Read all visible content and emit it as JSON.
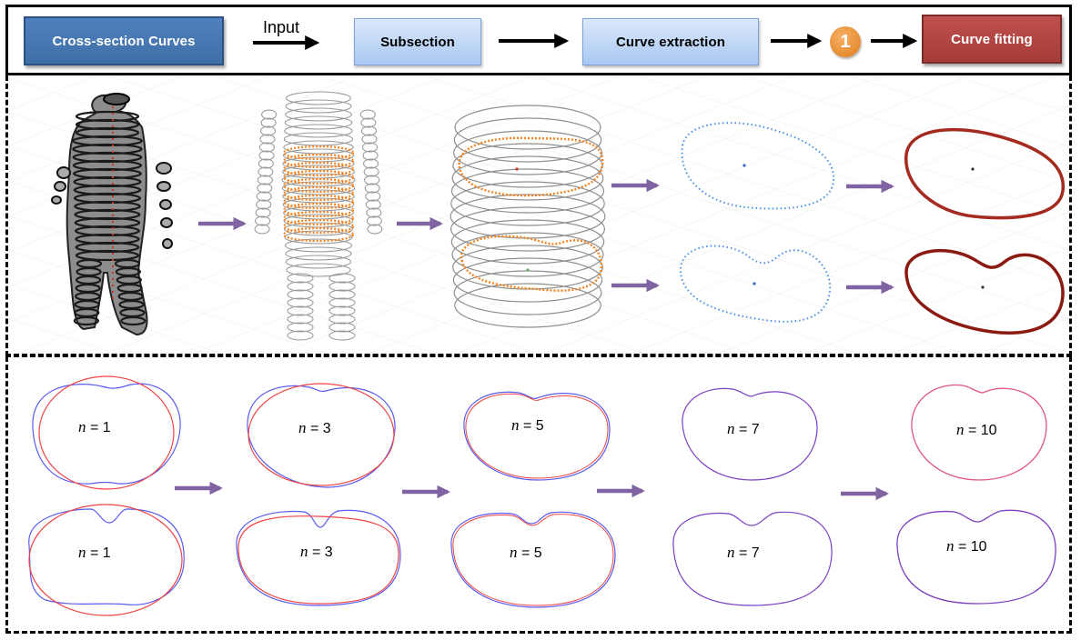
{
  "pipeline": {
    "source_label": "Cross-section Curves",
    "input_label": "Input",
    "step_subsection": "Subsection",
    "step_extraction": "Curve extraction",
    "step_badge": "1",
    "step_fitting": "Curve fitting"
  },
  "colors": {
    "source_box": "#4f81bd",
    "step_box": "#b8d3f5",
    "fitting_box": "#c0504d",
    "badge": "#f0943a",
    "arrow_purple": "#8064a2",
    "subsection_curves": "#f58220",
    "extracted_points": "#4a8fe7",
    "fitted_curve": "#b22222",
    "original_curve": "#5b5bf0",
    "fitted_overlay": "#ee4444"
  },
  "fitting_orders": {
    "top_row": [
      {
        "prefix": "n",
        "value": "= 1"
      },
      {
        "prefix": "n",
        "value": "= 3"
      },
      {
        "prefix": "n",
        "value": "= 5"
      },
      {
        "prefix": "n",
        "value": "= 7"
      },
      {
        "prefix": "n",
        "value": "= 10"
      }
    ],
    "bottom_row": [
      {
        "prefix": "n",
        "value": "= 1"
      },
      {
        "prefix": "n",
        "value": "= 3"
      },
      {
        "prefix": "n",
        "value": "= 5"
      },
      {
        "prefix": "n",
        "value": "= 7"
      },
      {
        "prefix": "n",
        "value": "= 10"
      }
    ]
  }
}
